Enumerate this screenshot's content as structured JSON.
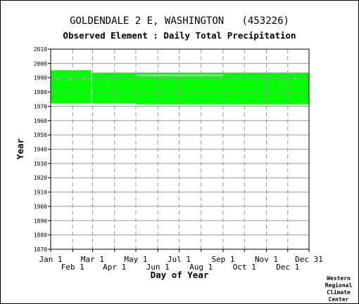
{
  "page": {
    "title": "GOLDENDALE 2 E, WASHINGTON   (453226)",
    "subtitle": "Observed Element : Daily Total Precipitation",
    "credit_lines": [
      "Western",
      "Regional",
      "Climate",
      "Center"
    ]
  },
  "chart_data": {
    "type": "area",
    "title": "GOLDENDALE 2 E, WASHINGTON   (453226)",
    "subtitle": "Observed Element : Daily Total Precipitation",
    "xlabel": "Day of Year",
    "ylabel": "Year",
    "xlim": [
      1,
      365
    ],
    "ylim": [
      1870,
      2010
    ],
    "x_ticks_upper": [
      {
        "label": "Jan 1",
        "day": 1
      },
      {
        "label": "Mar 1",
        "day": 60
      },
      {
        "label": "May 1",
        "day": 121
      },
      {
        "label": "Jul 1",
        "day": 182
      },
      {
        "label": "Sep 1",
        "day": 244
      },
      {
        "label": "Nov 1",
        "day": 305
      },
      {
        "label": "Dec 31",
        "day": 365
      }
    ],
    "x_ticks_lower": [
      {
        "label": "Feb 1",
        "day": 32
      },
      {
        "label": "Apr 1",
        "day": 91
      },
      {
        "label": "Jun 1",
        "day": 152
      },
      {
        "label": "Aug 1",
        "day": 213
      },
      {
        "label": "Oct 1",
        "day": 274
      },
      {
        "label": "Dec 1",
        "day": 335
      }
    ],
    "y_ticks": [
      1870,
      1880,
      1890,
      1900,
      1910,
      1920,
      1930,
      1940,
      1950,
      1960,
      1970,
      1980,
      1990,
      2000,
      2010
    ],
    "grid": true,
    "series_color": "#00ff00",
    "observed_periods": [
      {
        "day_start": 1,
        "day_end": 59,
        "year_start": 1972.2,
        "year_end": 1995.2
      },
      {
        "day_start": 59,
        "day_end": 121,
        "year_start": 1972.2,
        "year_end": 1993.6
      },
      {
        "day_start": 121,
        "day_end": 365,
        "year_start": 1971.4,
        "year_end": 1993.6
      }
    ],
    "missing_periods": [
      {
        "day_start": 121,
        "day_end": 244,
        "year": 1991.6
      },
      {
        "day_start": 58,
        "day_end": 59,
        "year_start": 1972.2,
        "year_end": 1995.2
      },
      {
        "day_start": 10,
        "day_end": 12,
        "year": 1988.6
      },
      {
        "day_start": 28,
        "day_end": 30,
        "year": 1988.6
      },
      {
        "day_start": 48,
        "day_end": 50,
        "year": 1988.6
      },
      {
        "day_start": 66,
        "day_end": 68,
        "year": 1984.6
      },
      {
        "day_start": 80,
        "day_end": 82,
        "year": 1984.6
      },
      {
        "day_start": 322,
        "day_end": 324,
        "year": 1984.6
      },
      {
        "day_start": 327,
        "day_end": 329,
        "year": 1984.6
      },
      {
        "day_start": 345,
        "day_end": 347,
        "year": 1989.6
      }
    ]
  }
}
